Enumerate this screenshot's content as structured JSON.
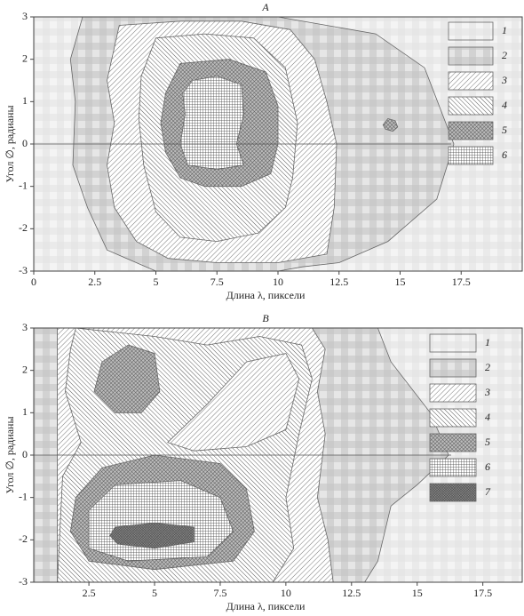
{
  "chart_data": {
    "charts": [
      {
        "type": "contour",
        "title": "A",
        "xlabel": "Длина λ, пиксели",
        "ylabel": "Угол ∅, радианы",
        "xlim": [
          0,
          20
        ],
        "ylim": [
          -3,
          3
        ],
        "xticks": [
          0,
          2.5,
          5.0,
          7.5,
          10.0,
          12.5,
          15.0,
          17.5
        ],
        "yticks": [
          -3,
          -2,
          -1,
          0,
          1,
          2,
          3
        ],
        "series": [
          {
            "name": "1",
            "pattern": "checker-light",
            "x": [
              0,
              20,
              20,
              0
            ],
            "y": [
              -3,
              -3,
              3,
              3
            ]
          },
          {
            "name": "2",
            "pattern": "checker",
            "x": [
              2,
              10,
              14,
              16,
              17.2,
              16.5,
              14.5,
              12.5,
              11,
              10,
              5,
              3,
              2.2,
              1.6,
              1.7,
              1.5
            ],
            "y": [
              3,
              3,
              2.6,
              1.8,
              0,
              -1.3,
              -2.3,
              -2.8,
              -2.9,
              -3,
              -3,
              -2.5,
              -1.5,
              -0.5,
              1,
              2
            ]
          },
          {
            "name": "3",
            "pattern": "hatch-up",
            "x": [
              3.5,
              6,
              8.5,
              10.5,
              11.5,
              12,
              12.4,
              12.3,
              12,
              10,
              7.5,
              5.5,
              4.2,
              3.3,
              3,
              3.3,
              3
            ],
            "y": [
              2.8,
              2.9,
              2.9,
              2.7,
              2,
              1,
              0,
              -1.5,
              -2.6,
              -2.8,
              -2.8,
              -2.7,
              -2.3,
              -1.5,
              -0.5,
              0.5,
              1.5
            ]
          },
          {
            "name": "4",
            "pattern": "hatch-down",
            "x": [
              5,
              7,
              9,
              10.3,
              10.8,
              10.6,
              10.3,
              9.2,
              7.5,
              6,
              5,
              4.5,
              4.3,
              4.4
            ],
            "y": [
              2.5,
              2.6,
              2.5,
              1.8,
              0.5,
              -0.8,
              -1.5,
              -2.1,
              -2.3,
              -2.2,
              -1.6,
              -0.5,
              0.6,
              1.6
            ]
          },
          {
            "name": "5",
            "pattern": "crosshatch",
            "x": [
              6,
              8,
              9.5,
              10,
              10,
              9.7,
              8.5,
              7,
              6,
              5.4,
              5.2,
              5.4,
              null,
              14.3,
              14.5,
              14.8,
              14.9,
              14.7,
              14.4
            ],
            "y": [
              1.9,
              2,
              1.7,
              0.9,
              0,
              -0.7,
              -1,
              -1,
              -0.8,
              -0.2,
              0.5,
              1.2,
              null,
              0.45,
              0.6,
              0.55,
              0.4,
              0.3,
              0.35
            ]
          },
          {
            "name": "6",
            "pattern": "grid",
            "x": [
              6.5,
              7.5,
              8.5,
              8.6,
              8.3,
              8.6,
              7.5,
              6.3,
              6,
              6.2,
              6.1
            ],
            "y": [
              1.5,
              1.6,
              1.4,
              0.7,
              0,
              -0.5,
              -0.6,
              -0.5,
              0,
              0.7,
              1.2
            ]
          }
        ]
      },
      {
        "type": "contour",
        "title": "B",
        "xlabel": "Длина λ, пиксели",
        "ylabel": "Угол ∅, радианы",
        "xlim": [
          0.4,
          19
        ],
        "ylim": [
          -3,
          3
        ],
        "xticks": [
          2.5,
          5.0,
          7.5,
          10.0,
          12.5,
          15.0,
          17.5
        ],
        "yticks": [
          -3,
          -2,
          -1,
          0,
          1,
          2,
          3
        ],
        "series": [
          {
            "name": "1",
            "pattern": "checker-light",
            "x": [
              0.4,
              19,
              19,
              0.4
            ],
            "y": [
              -3,
              -3,
              3,
              3
            ]
          },
          {
            "name": "2",
            "pattern": "checker",
            "x": [
              0.4,
              13.5,
              14,
              15.5,
              16.2,
              15,
              14,
              13.5,
              13,
              0.4
            ],
            "y": [
              3,
              3,
              2.2,
              1,
              0,
              -0.7,
              -1.2,
              -2.5,
              -3,
              -3
            ]
          },
          {
            "name": "3",
            "pattern": "hatch-up",
            "x": [
              1.3,
              11,
              11.5,
              11.2,
              11.5,
              11.2,
              11.6,
              11.8,
              1.3
            ],
            "y": [
              3,
              3,
              2.5,
              1.5,
              0.5,
              -1,
              -2,
              -3,
              -3
            ]
          },
          {
            "name": "4",
            "pattern": "hatch-down",
            "x": [
              2,
              5,
              7,
              9,
              10.6,
              11,
              10.5,
              10,
              10.3,
              9.5,
              1.3,
              1.5,
              2.2,
              1.6,
              1.8,
              null,
              5.5,
              7,
              8.5,
              10,
              10.5,
              10,
              8.5,
              6.5
            ],
            "y": [
              3,
              2.8,
              2.6,
              2.8,
              2.6,
              1.8,
              0.5,
              -1,
              -2.2,
              -3,
              -3,
              -0.5,
              0.3,
              1.5,
              2.5,
              null,
              0.3,
              1.2,
              2.2,
              2.4,
              1.8,
              0.6,
              0.2,
              0.1
            ]
          },
          {
            "name": "5",
            "pattern": "crosshatch",
            "x": [
              3,
              4,
              5,
              5.2,
              4.5,
              3.5,
              2.7,
              null,
              2,
              3,
              5,
              7.5,
              8.5,
              8.8,
              8,
              5,
              2.5,
              1.8
            ],
            "y": [
              2.2,
              2.6,
              2.4,
              1.5,
              1,
              1,
              1.5,
              null,
              -1,
              -0.3,
              0,
              -0.2,
              -0.8,
              -1.8,
              -2.5,
              -2.7,
              -2.5,
              -1.8
            ]
          },
          {
            "name": "6",
            "pattern": "grid",
            "x": [
              2.5,
              3.5,
              6,
              7.5,
              8,
              7,
              4,
              2.5
            ],
            "y": [
              -1.3,
              -0.7,
              -0.6,
              -1,
              -1.8,
              -2.4,
              -2.5,
              -2.2
            ]
          },
          {
            "name": "7",
            "pattern": "dense-crosshatch",
            "x": [
              3.3,
              3.5,
              5,
              6.5,
              6.5,
              5,
              3.6
            ],
            "y": [
              -1.9,
              -1.7,
              -1.6,
              -1.7,
              -2.05,
              -2.2,
              -2.1
            ]
          }
        ]
      }
    ]
  }
}
